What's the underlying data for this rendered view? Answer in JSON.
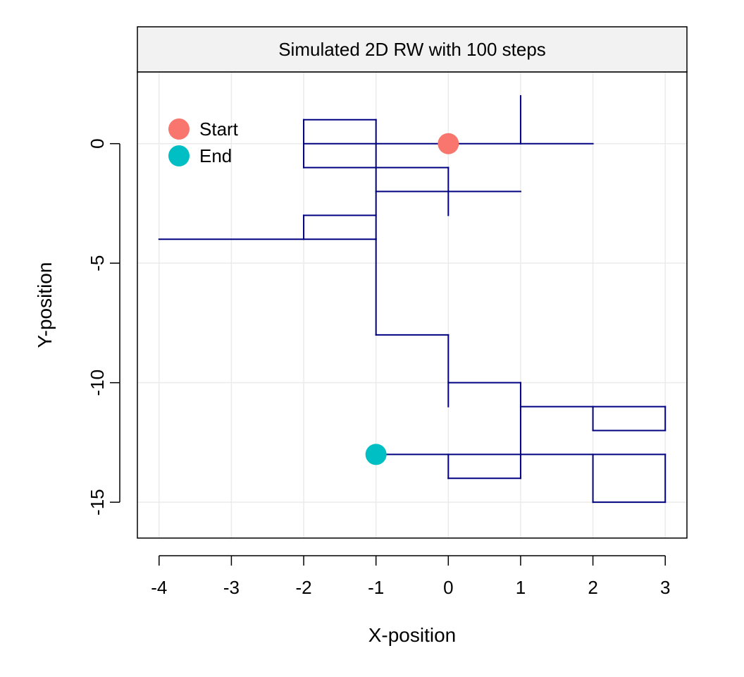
{
  "chart_data": {
    "type": "line",
    "title": "Simulated 2D RW with 100 steps",
    "xlabel": "X-position",
    "ylabel": "Y-position",
    "xlim": [
      -4.3,
      3.3
    ],
    "ylim": [
      -16.5,
      3.0
    ],
    "x_ticks": [
      -4,
      -3,
      -2,
      -1,
      0,
      1,
      2,
      3
    ],
    "y_ticks": [
      0,
      -5,
      -10,
      -15
    ],
    "grid": true,
    "legend_position": "top-left",
    "legend": [
      {
        "label": "Start",
        "color": "#F8766D"
      },
      {
        "label": "End",
        "color": "#00BFC4"
      }
    ],
    "path_color": "#000080",
    "strip_fill": "#F2F2F2",
    "panel_fill": "#FFFFFF",
    "start": {
      "x": 0,
      "y": 0
    },
    "end": {
      "x": -1,
      "y": -13
    },
    "path_segments": [
      [
        [
          2,
          0
        ],
        [
          -2,
          0
        ]
      ],
      [
        [
          1,
          2
        ],
        [
          1,
          0
        ]
      ],
      [
        [
          -2,
          1
        ],
        [
          -2,
          -1
        ]
      ],
      [
        [
          -2,
          1
        ],
        [
          -1,
          1
        ]
      ],
      [
        [
          -1,
          1
        ],
        [
          -1,
          -4
        ]
      ],
      [
        [
          -2,
          -1
        ],
        [
          0,
          -1
        ]
      ],
      [
        [
          0,
          -1
        ],
        [
          0,
          -3
        ]
      ],
      [
        [
          -1,
          -2
        ],
        [
          1,
          -2
        ]
      ],
      [
        [
          -2,
          -3
        ],
        [
          -1,
          -3
        ]
      ],
      [
        [
          -2,
          -3
        ],
        [
          -2,
          -4
        ]
      ],
      [
        [
          -4,
          -4
        ],
        [
          -1,
          -4
        ]
      ],
      [
        [
          -1,
          -4
        ],
        [
          -1,
          -8
        ]
      ],
      [
        [
          -1,
          -8
        ],
        [
          0,
          -8
        ]
      ],
      [
        [
          0,
          -8
        ],
        [
          0,
          -11
        ]
      ],
      [
        [
          0,
          -10
        ],
        [
          1,
          -10
        ]
      ],
      [
        [
          1,
          -10
        ],
        [
          1,
          -14
        ]
      ],
      [
        [
          1,
          -11
        ],
        [
          3,
          -11
        ]
      ],
      [
        [
          3,
          -11
        ],
        [
          3,
          -12
        ]
      ],
      [
        [
          2,
          -12
        ],
        [
          3,
          -12
        ]
      ],
      [
        [
          2,
          -11
        ],
        [
          2,
          -12
        ]
      ],
      [
        [
          -1,
          -13
        ],
        [
          3,
          -13
        ]
      ],
      [
        [
          0,
          -13
        ],
        [
          0,
          -14
        ]
      ],
      [
        [
          0,
          -14
        ],
        [
          1,
          -14
        ]
      ],
      [
        [
          2,
          -13
        ],
        [
          2,
          -15
        ]
      ],
      [
        [
          3,
          -13
        ],
        [
          3,
          -15
        ]
      ],
      [
        [
          2,
          -15
        ],
        [
          3,
          -15
        ]
      ]
    ]
  }
}
